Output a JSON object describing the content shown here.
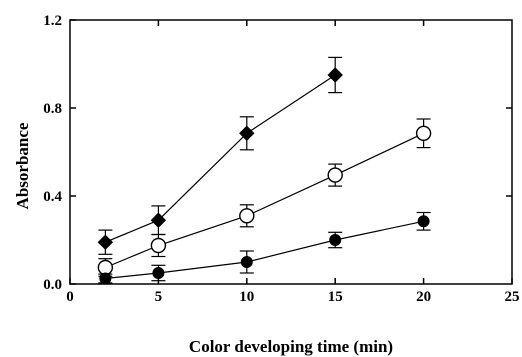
{
  "chart_data": {
    "type": "line",
    "title": "",
    "xlabel": "Color developing time (min)",
    "ylabel": "Absorbance",
    "xlim": [
      0,
      25
    ],
    "ylim": [
      0,
      1.2
    ],
    "xticks": [
      0,
      5,
      10,
      15,
      20,
      25
    ],
    "yticks": [
      0.0,
      0.4,
      0.8,
      1.2
    ],
    "xtick_labels": [
      "0",
      "5",
      "10",
      "15",
      "20",
      "25"
    ],
    "ytick_labels": [
      "0.0",
      "0.4",
      "0.8",
      "1.2"
    ],
    "grid": false,
    "legend": "none",
    "series": [
      {
        "marker": "diamond-filled",
        "x": [
          2,
          5,
          10,
          15
        ],
        "y": [
          0.19,
          0.29,
          0.685,
          0.95
        ],
        "err": [
          0.055,
          0.065,
          0.075,
          0.08
        ]
      },
      {
        "marker": "circle-open",
        "x": [
          2,
          5,
          10,
          15,
          20
        ],
        "y": [
          0.075,
          0.175,
          0.31,
          0.495,
          0.685
        ],
        "err": [
          0.04,
          0.05,
          0.05,
          0.05,
          0.065
        ]
      },
      {
        "marker": "circle-filled",
        "x": [
          2,
          5,
          10,
          15,
          20
        ],
        "y": [
          0.025,
          0.05,
          0.1,
          0.2,
          0.285
        ],
        "err": [
          0.02,
          0.035,
          0.05,
          0.035,
          0.04
        ]
      }
    ]
  }
}
